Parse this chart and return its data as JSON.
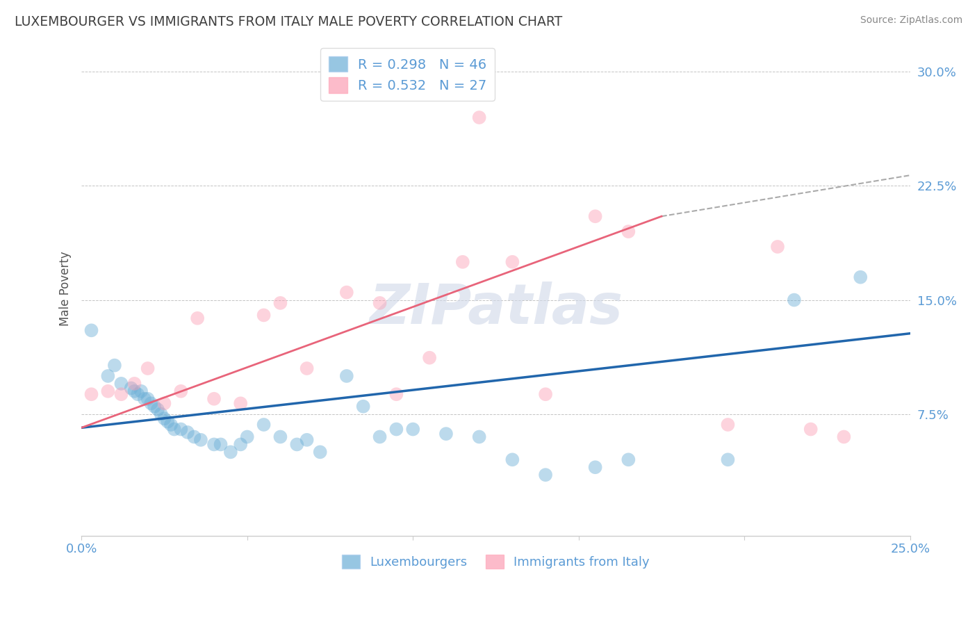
{
  "title": "LUXEMBOURGER VS IMMIGRANTS FROM ITALY MALE POVERTY CORRELATION CHART",
  "source": "Source: ZipAtlas.com",
  "xlabel": "",
  "ylabel": "Male Poverty",
  "xlim": [
    0,
    0.25
  ],
  "ylim": [
    -0.005,
    0.32
  ],
  "yticks": [
    0.075,
    0.15,
    0.225,
    0.3
  ],
  "ytick_labels": [
    "7.5%",
    "15.0%",
    "22.5%",
    "30.0%"
  ],
  "xticks": [
    0.0,
    0.05,
    0.1,
    0.15,
    0.2,
    0.25
  ],
  "xtick_labels": [
    "0.0%",
    "",
    "",
    "",
    "",
    "25.0%"
  ],
  "blue_R": 0.298,
  "blue_N": 46,
  "pink_R": 0.532,
  "pink_N": 27,
  "blue_color": "#6BAED6",
  "pink_color": "#FC9EB4",
  "blue_line_color": "#2166AC",
  "pink_line_color": "#E8647A",
  "background_color": "#FFFFFF",
  "grid_color": "#AAAAAA",
  "title_color": "#404040",
  "axis_label_color": "#5B9BD5",
  "legend_text_color": "#5B9BD5",
  "watermark": "ZIPatlas",
  "blue_x": [
    0.003,
    0.008,
    0.01,
    0.012,
    0.015,
    0.016,
    0.017,
    0.018,
    0.019,
    0.02,
    0.021,
    0.022,
    0.023,
    0.024,
    0.025,
    0.026,
    0.027,
    0.028,
    0.03,
    0.032,
    0.034,
    0.036,
    0.04,
    0.042,
    0.045,
    0.048,
    0.05,
    0.055,
    0.06,
    0.065,
    0.068,
    0.072,
    0.08,
    0.085,
    0.09,
    0.095,
    0.1,
    0.11,
    0.12,
    0.13,
    0.14,
    0.155,
    0.165,
    0.195,
    0.215,
    0.235
  ],
  "blue_y": [
    0.13,
    0.1,
    0.107,
    0.095,
    0.092,
    0.09,
    0.088,
    0.09,
    0.085,
    0.085,
    0.082,
    0.08,
    0.078,
    0.075,
    0.072,
    0.07,
    0.068,
    0.065,
    0.065,
    0.063,
    0.06,
    0.058,
    0.055,
    0.055,
    0.05,
    0.055,
    0.06,
    0.068,
    0.06,
    0.055,
    0.058,
    0.05,
    0.1,
    0.08,
    0.06,
    0.065,
    0.065,
    0.062,
    0.06,
    0.045,
    0.035,
    0.04,
    0.045,
    0.045,
    0.15,
    0.165
  ],
  "pink_x": [
    0.003,
    0.008,
    0.012,
    0.016,
    0.02,
    0.025,
    0.03,
    0.035,
    0.04,
    0.048,
    0.055,
    0.06,
    0.068,
    0.08,
    0.09,
    0.095,
    0.105,
    0.115,
    0.12,
    0.13,
    0.14,
    0.155,
    0.165,
    0.195,
    0.21,
    0.22,
    0.23
  ],
  "pink_y": [
    0.088,
    0.09,
    0.088,
    0.095,
    0.105,
    0.082,
    0.09,
    0.138,
    0.085,
    0.082,
    0.14,
    0.148,
    0.105,
    0.155,
    0.148,
    0.088,
    0.112,
    0.175,
    0.27,
    0.175,
    0.088,
    0.205,
    0.195,
    0.068,
    0.185,
    0.065,
    0.06
  ],
  "blue_line_y_start": 0.066,
  "blue_line_y_end": 0.128,
  "pink_line_x_start": 0.0,
  "pink_line_x_end": 0.175,
  "pink_line_y_start": 0.066,
  "pink_line_y_end": 0.205,
  "dashed_line_x": [
    0.175,
    0.25
  ],
  "dashed_line_y_start": 0.205,
  "dashed_line_y_end": 0.232
}
